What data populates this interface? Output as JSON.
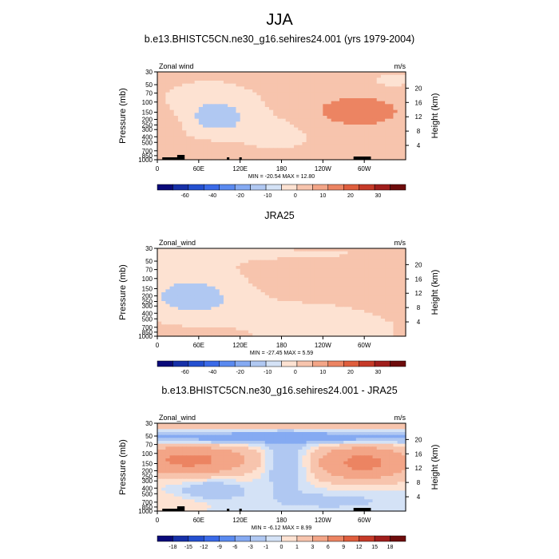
{
  "figure": {
    "title": "JJA",
    "panels": [
      {
        "title": "b.e13.BHISTC5CN.ne30_g16.sehires24.001 (yrs 1979-2004)",
        "left_label": "Zonal wind",
        "right_label": "m/s",
        "stats": "MIN = -20.54  MAX =  12.80"
      },
      {
        "title": "JRA25",
        "left_label": "Zonal_wind",
        "right_label": "m/s",
        "stats": "MIN = -27.45  MAX =   5.59"
      },
      {
        "title": "b.e13.BHISTC5CN.ne30_g16.sehires24.001 - JRA25",
        "left_label": "Zonal_wind",
        "right_label": "m/s",
        "stats": "MIN =  -6.12  MAX =  8.99"
      }
    ]
  },
  "chart_data": [
    {
      "type": "heatmap",
      "title": "b.e13.BHISTC5CN.ne30_g16.sehires24.001 (yrs 1979-2004)",
      "ylabel": "Pressure (mb)",
      "ylabel_right": "Height (km)",
      "xticks": [
        "0",
        "60E",
        "120E",
        "180",
        "120W",
        "60W"
      ],
      "yticks": [
        "30",
        "50",
        "70",
        "100",
        "150",
        "200",
        "250",
        "300",
        "400",
        "500",
        "700",
        "850",
        "1000"
      ],
      "yticks_right": [
        "20",
        "16",
        "12",
        "8",
        "4"
      ],
      "colorbar_levels": [
        -60,
        -40,
        -20,
        -10,
        0,
        10,
        20,
        30
      ],
      "min": -20.54,
      "max": 12.8,
      "units": "m/s"
    },
    {
      "type": "heatmap",
      "title": "JRA25",
      "ylabel": "Pressure (mb)",
      "ylabel_right": "Height (km)",
      "xticks": [
        "0",
        "60E",
        "120E",
        "180",
        "120W",
        "60W"
      ],
      "yticks": [
        "30",
        "50",
        "70",
        "100",
        "150",
        "200",
        "250",
        "300",
        "400",
        "500",
        "700",
        "850",
        "1000"
      ],
      "yticks_right": [
        "20",
        "16",
        "12",
        "8",
        "4"
      ],
      "colorbar_levels": [
        -60,
        -40,
        -20,
        -10,
        0,
        10,
        20,
        30
      ],
      "min": -27.45,
      "max": 5.59,
      "units": "m/s"
    },
    {
      "type": "heatmap",
      "title": "b.e13.BHISTC5CN.ne30_g16.sehires24.001 - JRA25",
      "ylabel": "Pressure (mb)",
      "ylabel_right": "Height (km)",
      "xticks": [
        "0",
        "60E",
        "120E",
        "180",
        "120W",
        "60W"
      ],
      "yticks": [
        "30",
        "50",
        "70",
        "100",
        "150",
        "200",
        "250",
        "300",
        "400",
        "500",
        "700",
        "850",
        "1000"
      ],
      "yticks_right": [
        "20",
        "16",
        "12",
        "8",
        "4"
      ],
      "colorbar_levels": [
        -18,
        -15,
        -12,
        -9,
        -6,
        -3,
        -1,
        0,
        1,
        3,
        6,
        9,
        12,
        15,
        18
      ],
      "min": -6.12,
      "max": 8.99,
      "units": "m/s"
    }
  ],
  "colormap": [
    "#0a0a7a",
    "#1630a8",
    "#2450d0",
    "#3a6ae8",
    "#5a8af0",
    "#85aaf2",
    "#b0c8f2",
    "#d4e2f6",
    "#fde2d2",
    "#f7c4ad",
    "#f3a587",
    "#ec8462",
    "#df5e3d",
    "#c63a28",
    "#a01e1c",
    "#6e0c0c"
  ]
}
